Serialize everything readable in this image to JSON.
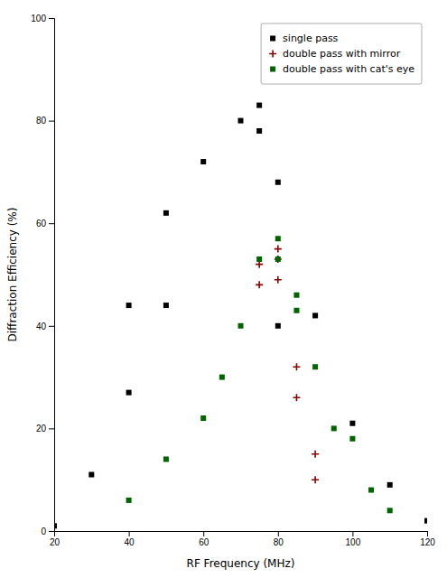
{
  "chart_data": {
    "type": "scatter",
    "xlabel": "RF Frequency (MHz)",
    "ylabel": "Diffraction Efficiency (%)",
    "series": [
      {
        "name": "single pass",
        "color": "#000000",
        "marker": "square",
        "x": [
          20,
          30,
          40,
          40,
          50,
          50,
          60,
          70,
          75,
          75,
          80,
          80,
          90,
          100,
          110,
          120
        ],
        "values": [
          1,
          11,
          27,
          44,
          44,
          62,
          72,
          80,
          83,
          78,
          68,
          40,
          42,
          21,
          9,
          2
        ]
      },
      {
        "name": "double pass with mirror",
        "color": "#8b0000",
        "marker": "plus",
        "x": [
          75,
          75,
          80,
          80,
          80,
          85,
          85,
          90,
          90
        ],
        "values": [
          48,
          52,
          55,
          53,
          49,
          32,
          26,
          15,
          10
        ]
      },
      {
        "name": "double pass with cat's eye",
        "color": "#006400",
        "marker": "square",
        "x": [
          40,
          50,
          60,
          65,
          70,
          75,
          80,
          80,
          85,
          85,
          90,
          95,
          100,
          105,
          110
        ],
        "values": [
          6,
          14,
          22,
          30,
          40,
          53,
          57,
          53,
          46,
          43,
          32,
          20,
          18,
          8,
          4
        ]
      }
    ],
    "xlim": [
      20,
      120
    ],
    "xticks": [
      20,
      40,
      60,
      80,
      100,
      120
    ],
    "ylim": [
      0,
      100
    ],
    "yticks": [
      0,
      20,
      40,
      60,
      80,
      100
    ],
    "legend": "upper right"
  }
}
